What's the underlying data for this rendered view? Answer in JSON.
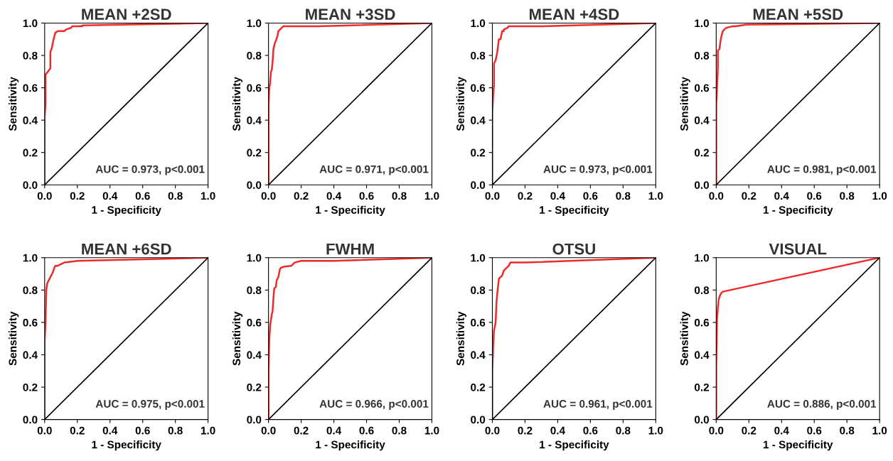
{
  "chart_data": [
    {
      "type": "line",
      "title": "MEAN +2SD",
      "xlabel": "1 - Specificity",
      "ylabel": "Sensitivity",
      "xlim": [
        0,
        1
      ],
      "ylim": [
        0,
        1
      ],
      "xticks": [
        {
          "value": 0,
          "label": "0.0"
        },
        {
          "value": 0.2,
          "label": "0.2"
        },
        {
          "value": 0.4,
          "label": "0.4"
        },
        {
          "value": 0.6,
          "label": "0.6"
        },
        {
          "value": 0.8,
          "label": "0.8"
        },
        {
          "value": 1,
          "label": "1.0"
        }
      ],
      "yticks": [
        {
          "value": 0,
          "label": "0.0"
        },
        {
          "value": 0.2,
          "label": "0.2"
        },
        {
          "value": 0.4,
          "label": "0.4"
        },
        {
          "value": 0.6,
          "label": "0.6"
        },
        {
          "value": 0.8,
          "label": "0.8"
        },
        {
          "value": 1,
          "label": "1.0"
        }
      ],
      "annotations": [
        "AUC = 0.973, p<0.001"
      ],
      "grid": false,
      "marker": "none",
      "line_style": "solid",
      "series": [
        {
          "color": "#ee2a2a",
          "x": [
            0,
            0,
            0.005,
            0.005,
            0.02,
            0.035,
            0.035,
            0.045,
            0.05,
            0.06,
            0.065,
            0.08,
            0.12,
            0.13,
            0.16,
            0.17,
            0.23,
            0.23,
            1
          ],
          "values": [
            0,
            0.42,
            0.5,
            0.68,
            0.7,
            0.72,
            0.82,
            0.85,
            0.88,
            0.92,
            0.94,
            0.95,
            0.95,
            0.96,
            0.97,
            0.98,
            0.98,
            0.985,
            1
          ]
        },
        {
          "color": "#000000",
          "x": [
            0,
            1
          ],
          "values": [
            0,
            1
          ]
        }
      ]
    },
    {
      "type": "line",
      "title": "MEAN +3SD",
      "xlabel": "1 - Specificity",
      "ylabel": "Sensitivity",
      "xlim": [
        0,
        1
      ],
      "ylim": [
        0,
        1
      ],
      "xticks": [
        {
          "value": 0,
          "label": "0.0"
        },
        {
          "value": 0.2,
          "label": "0.2"
        },
        {
          "value": 0.4,
          "label": "0.4"
        },
        {
          "value": 0.6,
          "label": "0.6"
        },
        {
          "value": 0.8,
          "label": "0.8"
        },
        {
          "value": 1,
          "label": "1.0"
        }
      ],
      "yticks": [
        {
          "value": 0,
          "label": "0.0"
        },
        {
          "value": 0.2,
          "label": "0.2"
        },
        {
          "value": 0.4,
          "label": "0.4"
        },
        {
          "value": 0.6,
          "label": "0.6"
        },
        {
          "value": 0.8,
          "label": "0.8"
        },
        {
          "value": 1,
          "label": "1.0"
        }
      ],
      "annotations": [
        "AUC = 0.971, p<0.001"
      ],
      "grid": false,
      "marker": "none",
      "line_style": "solid",
      "series": [
        {
          "color": "#ee2a2a",
          "x": [
            0,
            0,
            0.005,
            0.01,
            0.015,
            0.02,
            0.025,
            0.03,
            0.04,
            0.045,
            0.055,
            0.06,
            0.07,
            0.08,
            0.09,
            0.12,
            0.3,
            1
          ],
          "values": [
            0,
            0.5,
            0.6,
            0.63,
            0.7,
            0.71,
            0.76,
            0.84,
            0.88,
            0.89,
            0.92,
            0.95,
            0.96,
            0.97,
            0.98,
            0.98,
            0.98,
            1
          ]
        },
        {
          "color": "#000000",
          "x": [
            0,
            1
          ],
          "values": [
            0,
            1
          ]
        }
      ]
    },
    {
      "type": "line",
      "title": "MEAN +4SD",
      "xlabel": "1 - Specificity",
      "ylabel": "Sensitivity",
      "xlim": [
        0,
        1
      ],
      "ylim": [
        0,
        1
      ],
      "xticks": [
        {
          "value": 0,
          "label": "0.0"
        },
        {
          "value": 0.2,
          "label": "0.2"
        },
        {
          "value": 0.4,
          "label": "0.4"
        },
        {
          "value": 0.6,
          "label": "0.6"
        },
        {
          "value": 0.8,
          "label": "0.8"
        },
        {
          "value": 1,
          "label": "1.0"
        }
      ],
      "yticks": [
        {
          "value": 0,
          "label": "0.0"
        },
        {
          "value": 0.2,
          "label": "0.2"
        },
        {
          "value": 0.4,
          "label": "0.4"
        },
        {
          "value": 0.6,
          "label": "0.6"
        },
        {
          "value": 0.8,
          "label": "0.8"
        },
        {
          "value": 1,
          "label": "1.0"
        }
      ],
      "annotations": [
        "AUC = 0.973, p<0.001"
      ],
      "grid": false,
      "marker": "none",
      "line_style": "solid",
      "series": [
        {
          "color": "#ee2a2a",
          "x": [
            0,
            0,
            0.005,
            0.01,
            0.01,
            0.02,
            0.03,
            0.035,
            0.04,
            0.05,
            0.06,
            0.07,
            0.07,
            0.09,
            0.1,
            0.3,
            1
          ],
          "values": [
            0,
            0.45,
            0.55,
            0.62,
            0.75,
            0.77,
            0.82,
            0.86,
            0.9,
            0.9,
            0.95,
            0.95,
            0.96,
            0.97,
            0.98,
            0.98,
            1
          ]
        },
        {
          "color": "#000000",
          "x": [
            0,
            1
          ],
          "values": [
            0,
            1
          ]
        }
      ]
    },
    {
      "type": "line",
      "title": "MEAN +5SD",
      "xlabel": "1 - Specificity",
      "ylabel": "Sensitivity",
      "xlim": [
        0,
        1
      ],
      "ylim": [
        0,
        1
      ],
      "xticks": [
        {
          "value": 0,
          "label": "0.0"
        },
        {
          "value": 0.2,
          "label": "0.2"
        },
        {
          "value": 0.4,
          "label": "0.4"
        },
        {
          "value": 0.6,
          "label": "0.6"
        },
        {
          "value": 0.8,
          "label": "0.8"
        },
        {
          "value": 1,
          "label": "1.0"
        }
      ],
      "yticks": [
        {
          "value": 0,
          "label": "0.0"
        },
        {
          "value": 0.2,
          "label": "0.2"
        },
        {
          "value": 0.4,
          "label": "0.4"
        },
        {
          "value": 0.6,
          "label": "0.6"
        },
        {
          "value": 0.8,
          "label": "0.8"
        },
        {
          "value": 1,
          "label": "1.0"
        }
      ],
      "annotations": [
        "AUC = 0.981, p<0.001"
      ],
      "grid": false,
      "marker": "none",
      "line_style": "solid",
      "series": [
        {
          "color": "#ee2a2a",
          "x": [
            0,
            0,
            0.005,
            0.01,
            0.01,
            0.02,
            0.025,
            0.03,
            0.035,
            0.04,
            0.05,
            0.06,
            0.08,
            0.1,
            0.12,
            0.18,
            1
          ],
          "values": [
            0,
            0.5,
            0.6,
            0.72,
            0.83,
            0.84,
            0.88,
            0.91,
            0.93,
            0.95,
            0.96,
            0.97,
            0.975,
            0.98,
            0.98,
            0.99,
            1
          ]
        },
        {
          "color": "#000000",
          "x": [
            0,
            1
          ],
          "values": [
            0,
            1
          ]
        }
      ]
    },
    {
      "type": "line",
      "title": "MEAN +6SD",
      "xlabel": "1 - Specificity",
      "ylabel": "Sensitivity",
      "xlim": [
        0,
        1
      ],
      "ylim": [
        0,
        1
      ],
      "xticks": [
        {
          "value": 0,
          "label": "0.0"
        },
        {
          "value": 0.2,
          "label": "0.2"
        },
        {
          "value": 0.4,
          "label": "0.4"
        },
        {
          "value": 0.6,
          "label": "0.6"
        },
        {
          "value": 0.8,
          "label": "0.8"
        },
        {
          "value": 1,
          "label": "1.0"
        }
      ],
      "yticks": [
        {
          "value": 0,
          "label": "0.0"
        },
        {
          "value": 0.2,
          "label": "0.2"
        },
        {
          "value": 0.4,
          "label": "0.4"
        },
        {
          "value": 0.6,
          "label": "0.6"
        },
        {
          "value": 0.8,
          "label": "0.8"
        },
        {
          "value": 1,
          "label": "1.0"
        }
      ],
      "annotations": [
        "AUC = 0.975, p<0.001"
      ],
      "grid": false,
      "marker": "none",
      "line_style": "solid",
      "series": [
        {
          "color": "#ee2a2a",
          "x": [
            0,
            0,
            0.005,
            0.01,
            0.015,
            0.025,
            0.03,
            0.04,
            0.05,
            0.06,
            0.065,
            0.08,
            0.1,
            0.12,
            0.16,
            0.2,
            1
          ],
          "values": [
            0,
            0.48,
            0.6,
            0.8,
            0.84,
            0.86,
            0.87,
            0.89,
            0.91,
            0.94,
            0.95,
            0.95,
            0.96,
            0.97,
            0.975,
            0.98,
            1
          ]
        },
        {
          "color": "#000000",
          "x": [
            0,
            1
          ],
          "values": [
            0,
            1
          ]
        }
      ]
    },
    {
      "type": "line",
      "title": "FWHM",
      "xlabel": "1 - Specificity",
      "ylabel": "Sensitivity",
      "xlim": [
        0,
        1
      ],
      "ylim": [
        0,
        1
      ],
      "xticks": [
        {
          "value": 0,
          "label": "0.0"
        },
        {
          "value": 0.2,
          "label": "0.2"
        },
        {
          "value": 0.4,
          "label": "0.4"
        },
        {
          "value": 0.6,
          "label": "0.6"
        },
        {
          "value": 0.8,
          "label": "0.8"
        },
        {
          "value": 1,
          "label": "1.0"
        }
      ],
      "yticks": [
        {
          "value": 0,
          "label": "0.0"
        },
        {
          "value": 0.2,
          "label": "0.2"
        },
        {
          "value": 0.4,
          "label": "0.4"
        },
        {
          "value": 0.6,
          "label": "0.6"
        },
        {
          "value": 0.8,
          "label": "0.8"
        },
        {
          "value": 1,
          "label": "1.0"
        }
      ],
      "annotations": [
        "AUC = 0.966, p<0.001"
      ],
      "grid": false,
      "marker": "none",
      "line_style": "solid",
      "series": [
        {
          "color": "#ee2a2a",
          "x": [
            0,
            0,
            0.005,
            0.01,
            0.02,
            0.025,
            0.03,
            0.035,
            0.045,
            0.05,
            0.06,
            0.07,
            0.08,
            0.1,
            0.14,
            0.16,
            0.2,
            0.4,
            1
          ],
          "values": [
            0,
            0.3,
            0.5,
            0.58,
            0.65,
            0.67,
            0.75,
            0.81,
            0.82,
            0.86,
            0.88,
            0.93,
            0.94,
            0.945,
            0.95,
            0.97,
            0.98,
            0.98,
            1
          ]
        },
        {
          "color": "#000000",
          "x": [
            0,
            1
          ],
          "values": [
            0,
            1
          ]
        }
      ]
    },
    {
      "type": "line",
      "title": "OTSU",
      "xlabel": "1 - Specificity",
      "ylabel": "Sensitivity",
      "xlim": [
        0,
        1
      ],
      "ylim": [
        0,
        1
      ],
      "xticks": [
        {
          "value": 0,
          "label": "0.0"
        },
        {
          "value": 0.2,
          "label": "0.2"
        },
        {
          "value": 0.4,
          "label": "0.4"
        },
        {
          "value": 0.6,
          "label": "0.6"
        },
        {
          "value": 0.8,
          "label": "0.8"
        },
        {
          "value": 1,
          "label": "1.0"
        }
      ],
      "yticks": [
        {
          "value": 0,
          "label": "0.0"
        },
        {
          "value": 0.2,
          "label": "0.2"
        },
        {
          "value": 0.4,
          "label": "0.4"
        },
        {
          "value": 0.6,
          "label": "0.6"
        },
        {
          "value": 0.8,
          "label": "0.8"
        },
        {
          "value": 1,
          "label": "1.0"
        }
      ],
      "annotations": [
        "AUC = 0.961, p<0.001"
      ],
      "grid": false,
      "marker": "none",
      "line_style": "solid",
      "series": [
        {
          "color": "#ee2a2a",
          "x": [
            0,
            0,
            0.005,
            0.01,
            0.02,
            0.025,
            0.03,
            0.04,
            0.05,
            0.06,
            0.07,
            0.08,
            0.09,
            0.1,
            0.11,
            0.2,
            1
          ],
          "values": [
            0,
            0.3,
            0.45,
            0.55,
            0.6,
            0.72,
            0.78,
            0.87,
            0.88,
            0.89,
            0.92,
            0.93,
            0.94,
            0.95,
            0.97,
            0.97,
            1
          ]
        },
        {
          "color": "#000000",
          "x": [
            0,
            1
          ],
          "values": [
            0,
            1
          ]
        }
      ]
    },
    {
      "type": "line",
      "title": "VISUAL",
      "xlabel": "1 - Specificity",
      "ylabel": "Sensitivity",
      "xlim": [
        0,
        1
      ],
      "ylim": [
        0,
        1
      ],
      "xticks": [
        {
          "value": 0,
          "label": "0.0"
        },
        {
          "value": 0.2,
          "label": "0.2"
        },
        {
          "value": 0.4,
          "label": "0.4"
        },
        {
          "value": 0.6,
          "label": "0.6"
        },
        {
          "value": 0.8,
          "label": "0.8"
        },
        {
          "value": 1,
          "label": "1.0"
        }
      ],
      "yticks": [
        {
          "value": 0,
          "label": "0.0"
        },
        {
          "value": 0.2,
          "label": "0.2"
        },
        {
          "value": 0.4,
          "label": "0.4"
        },
        {
          "value": 0.6,
          "label": "0.6"
        },
        {
          "value": 0.8,
          "label": "0.8"
        },
        {
          "value": 1,
          "label": "1.0"
        }
      ],
      "annotations": [
        "AUC = 0.886, p<0.001"
      ],
      "grid": false,
      "marker": "none",
      "line_style": "solid",
      "series": [
        {
          "color": "#ee2a2a",
          "x": [
            0,
            0,
            0.005,
            0.01,
            0.015,
            0.02,
            0.025,
            0.03,
            0.04,
            1
          ],
          "values": [
            0,
            0.33,
            0.62,
            0.69,
            0.74,
            0.76,
            0.77,
            0.78,
            0.79,
            1
          ]
        },
        {
          "color": "#000000",
          "x": [
            0,
            1
          ],
          "values": [
            0,
            1
          ]
        }
      ]
    }
  ]
}
